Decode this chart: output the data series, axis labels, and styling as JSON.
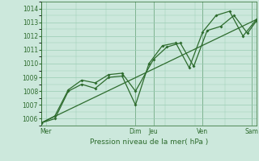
{
  "xlabel": "Pression niveau de la mer( hPa )",
  "bg_color": "#cce8dc",
  "grid_color": "#99ccb3",
  "line_color": "#2d6b2d",
  "text_color": "#2d6b2d",
  "ylim": [
    1005.5,
    1014.5
  ],
  "yticks": [
    1006,
    1007,
    1008,
    1009,
    1010,
    1011,
    1012,
    1013,
    1014
  ],
  "xlim": [
    0,
    96
  ],
  "x_day_labels": [
    {
      "label": "Mer",
      "x": 2
    },
    {
      "label": "Dim",
      "x": 42
    },
    {
      "label": "Jeu",
      "x": 50
    },
    {
      "label": "Ven",
      "x": 72
    },
    {
      "label": "Sam",
      "x": 94
    }
  ],
  "x_day_lines": [
    0,
    42,
    50,
    72,
    94
  ],
  "line1_x": [
    0,
    6,
    12,
    18,
    24,
    30,
    36,
    42,
    48,
    54,
    60,
    66,
    72,
    78,
    84,
    90,
    96
  ],
  "line1_y": [
    1005.7,
    1006.0,
    1008.0,
    1008.5,
    1008.2,
    1009.0,
    1009.1,
    1007.0,
    1010.0,
    1011.3,
    1011.5,
    1009.7,
    1012.3,
    1013.5,
    1013.8,
    1012.0,
    1013.2
  ],
  "line2_x": [
    0,
    6,
    12,
    18,
    24,
    30,
    36,
    42,
    50,
    56,
    62,
    68,
    74,
    80,
    86,
    92,
    96
  ],
  "line2_y": [
    1005.7,
    1006.2,
    1008.1,
    1008.8,
    1008.6,
    1009.2,
    1009.3,
    1008.0,
    1010.3,
    1011.2,
    1011.5,
    1009.8,
    1012.4,
    1012.7,
    1013.5,
    1012.2,
    1013.1
  ],
  "trend_x": [
    0,
    96
  ],
  "trend_y": [
    1005.7,
    1013.2
  ]
}
